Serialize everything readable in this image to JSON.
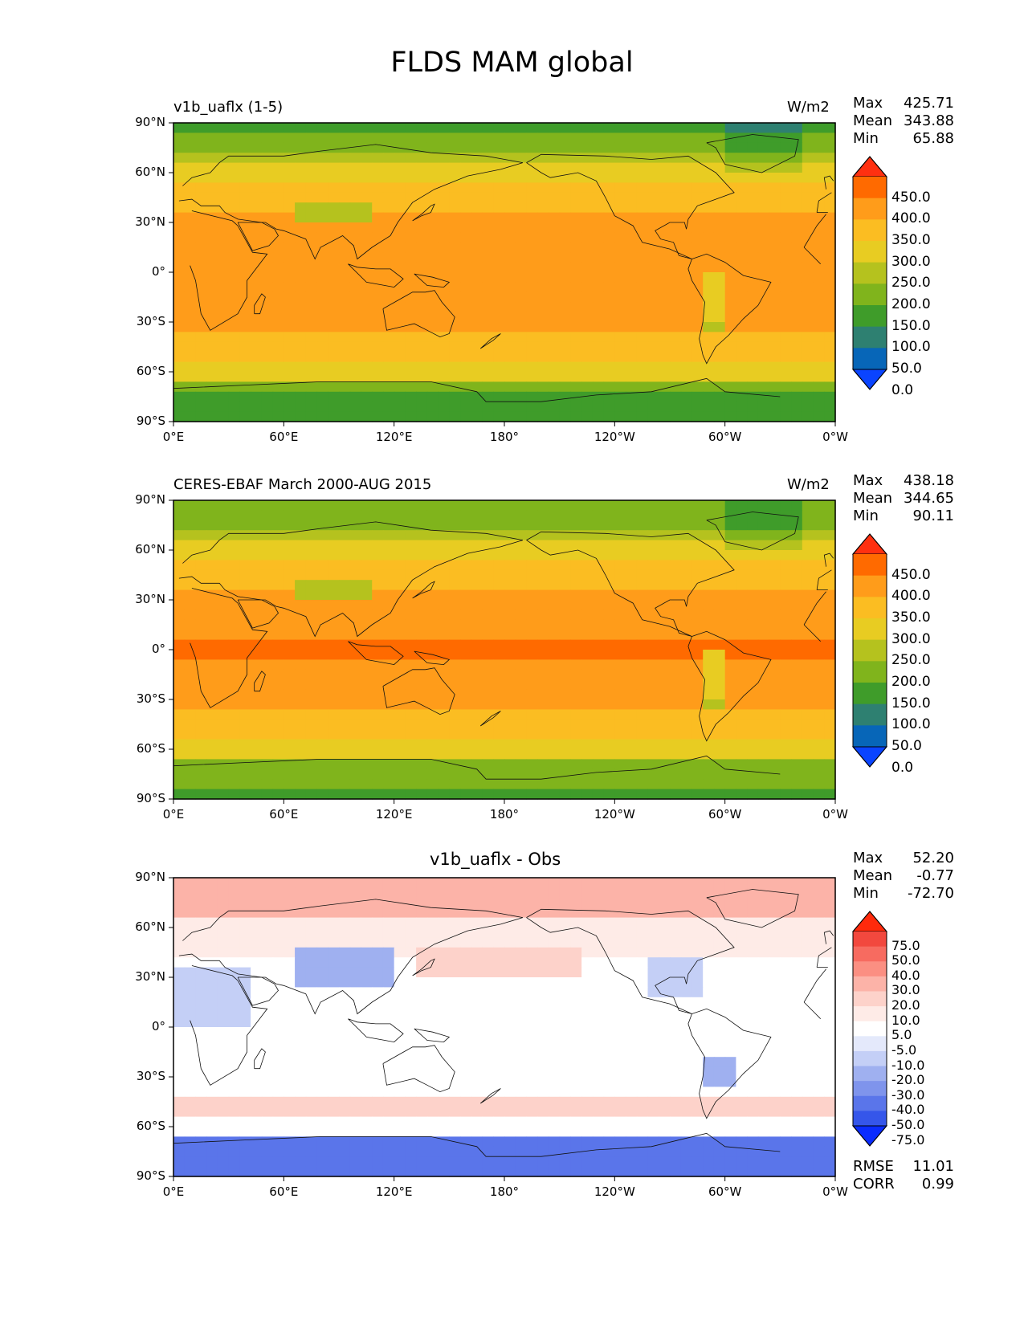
{
  "figure": {
    "title": "FLDS MAM global"
  },
  "axes": {
    "lat_ticks": [
      "90°N",
      "60°N",
      "30°N",
      "0°",
      "30°S",
      "60°S",
      "90°S"
    ],
    "lon_ticks": [
      "0°E",
      "60°E",
      "120°E",
      "180°",
      "120°W",
      "60°W",
      "0°W"
    ]
  },
  "panels": [
    {
      "left_title": "v1b_uaflx (1-5)",
      "center_title": "",
      "units": "W/m2",
      "stats": {
        "max_label": "Max",
        "max": "425.71",
        "mean_label": "Mean",
        "mean": "343.88",
        "min_label": "Min",
        "min": "65.88"
      },
      "colorbar": {
        "labels": [
          "450.0",
          "400.0",
          "350.0",
          "300.0",
          "250.0",
          "200.0",
          "150.0",
          "100.0",
          "50.0",
          "0.0"
        ],
        "colors": [
          "#ff3010",
          "#ff6a00",
          "#ff9c1a",
          "#fbbd22",
          "#e8cc22",
          "#b5c21e",
          "#80b41c",
          "#3f9c2a",
          "#2e8071",
          "#0766b8",
          "#0a44ff"
        ]
      }
    },
    {
      "left_title": "CERES-EBAF March 2000-AUG 2015",
      "center_title": "",
      "units": "W/m2",
      "stats": {
        "max_label": "Max",
        "max": "438.18",
        "mean_label": "Mean",
        "mean": "344.65",
        "min_label": "Min",
        "min": "90.11"
      },
      "colorbar": {
        "labels": [
          "450.0",
          "400.0",
          "350.0",
          "300.0",
          "250.0",
          "200.0",
          "150.0",
          "100.0",
          "50.0",
          "0.0"
        ],
        "colors": [
          "#ff3010",
          "#ff6a00",
          "#ff9c1a",
          "#fbbd22",
          "#e8cc22",
          "#b5c21e",
          "#80b41c",
          "#3f9c2a",
          "#2e8071",
          "#0766b8",
          "#0a44ff"
        ]
      }
    },
    {
      "left_title": "",
      "center_title": "v1b_uaflx - Obs",
      "units": "",
      "stats": {
        "max_label": "Max",
        "max": "52.20",
        "mean_label": "Mean",
        "mean": "-0.77",
        "min_label": "Min",
        "min": "-72.70"
      },
      "colorbar": {
        "labels": [
          "75.0",
          "50.0",
          "40.0",
          "30.0",
          "20.0",
          "10.0",
          "5.0",
          "-5.0",
          "-10.0",
          "-20.0",
          "-30.0",
          "-40.0",
          "-50.0",
          "-75.0"
        ],
        "colors": [
          "#ff2a0c",
          "#f2483e",
          "#f76b60",
          "#fb8f82",
          "#fcb3a8",
          "#fdd2ca",
          "#feebe7",
          "#ffffff",
          "#e4e9fb",
          "#c4cff6",
          "#9fb0f0",
          "#7f94ec",
          "#5a75ea",
          "#3556ea",
          "#0a2cff"
        ]
      },
      "metrics": {
        "rmse_label": "RMSE",
        "rmse": "11.01",
        "corr_label": "CORR",
        "corr": "0.99"
      }
    }
  ]
}
